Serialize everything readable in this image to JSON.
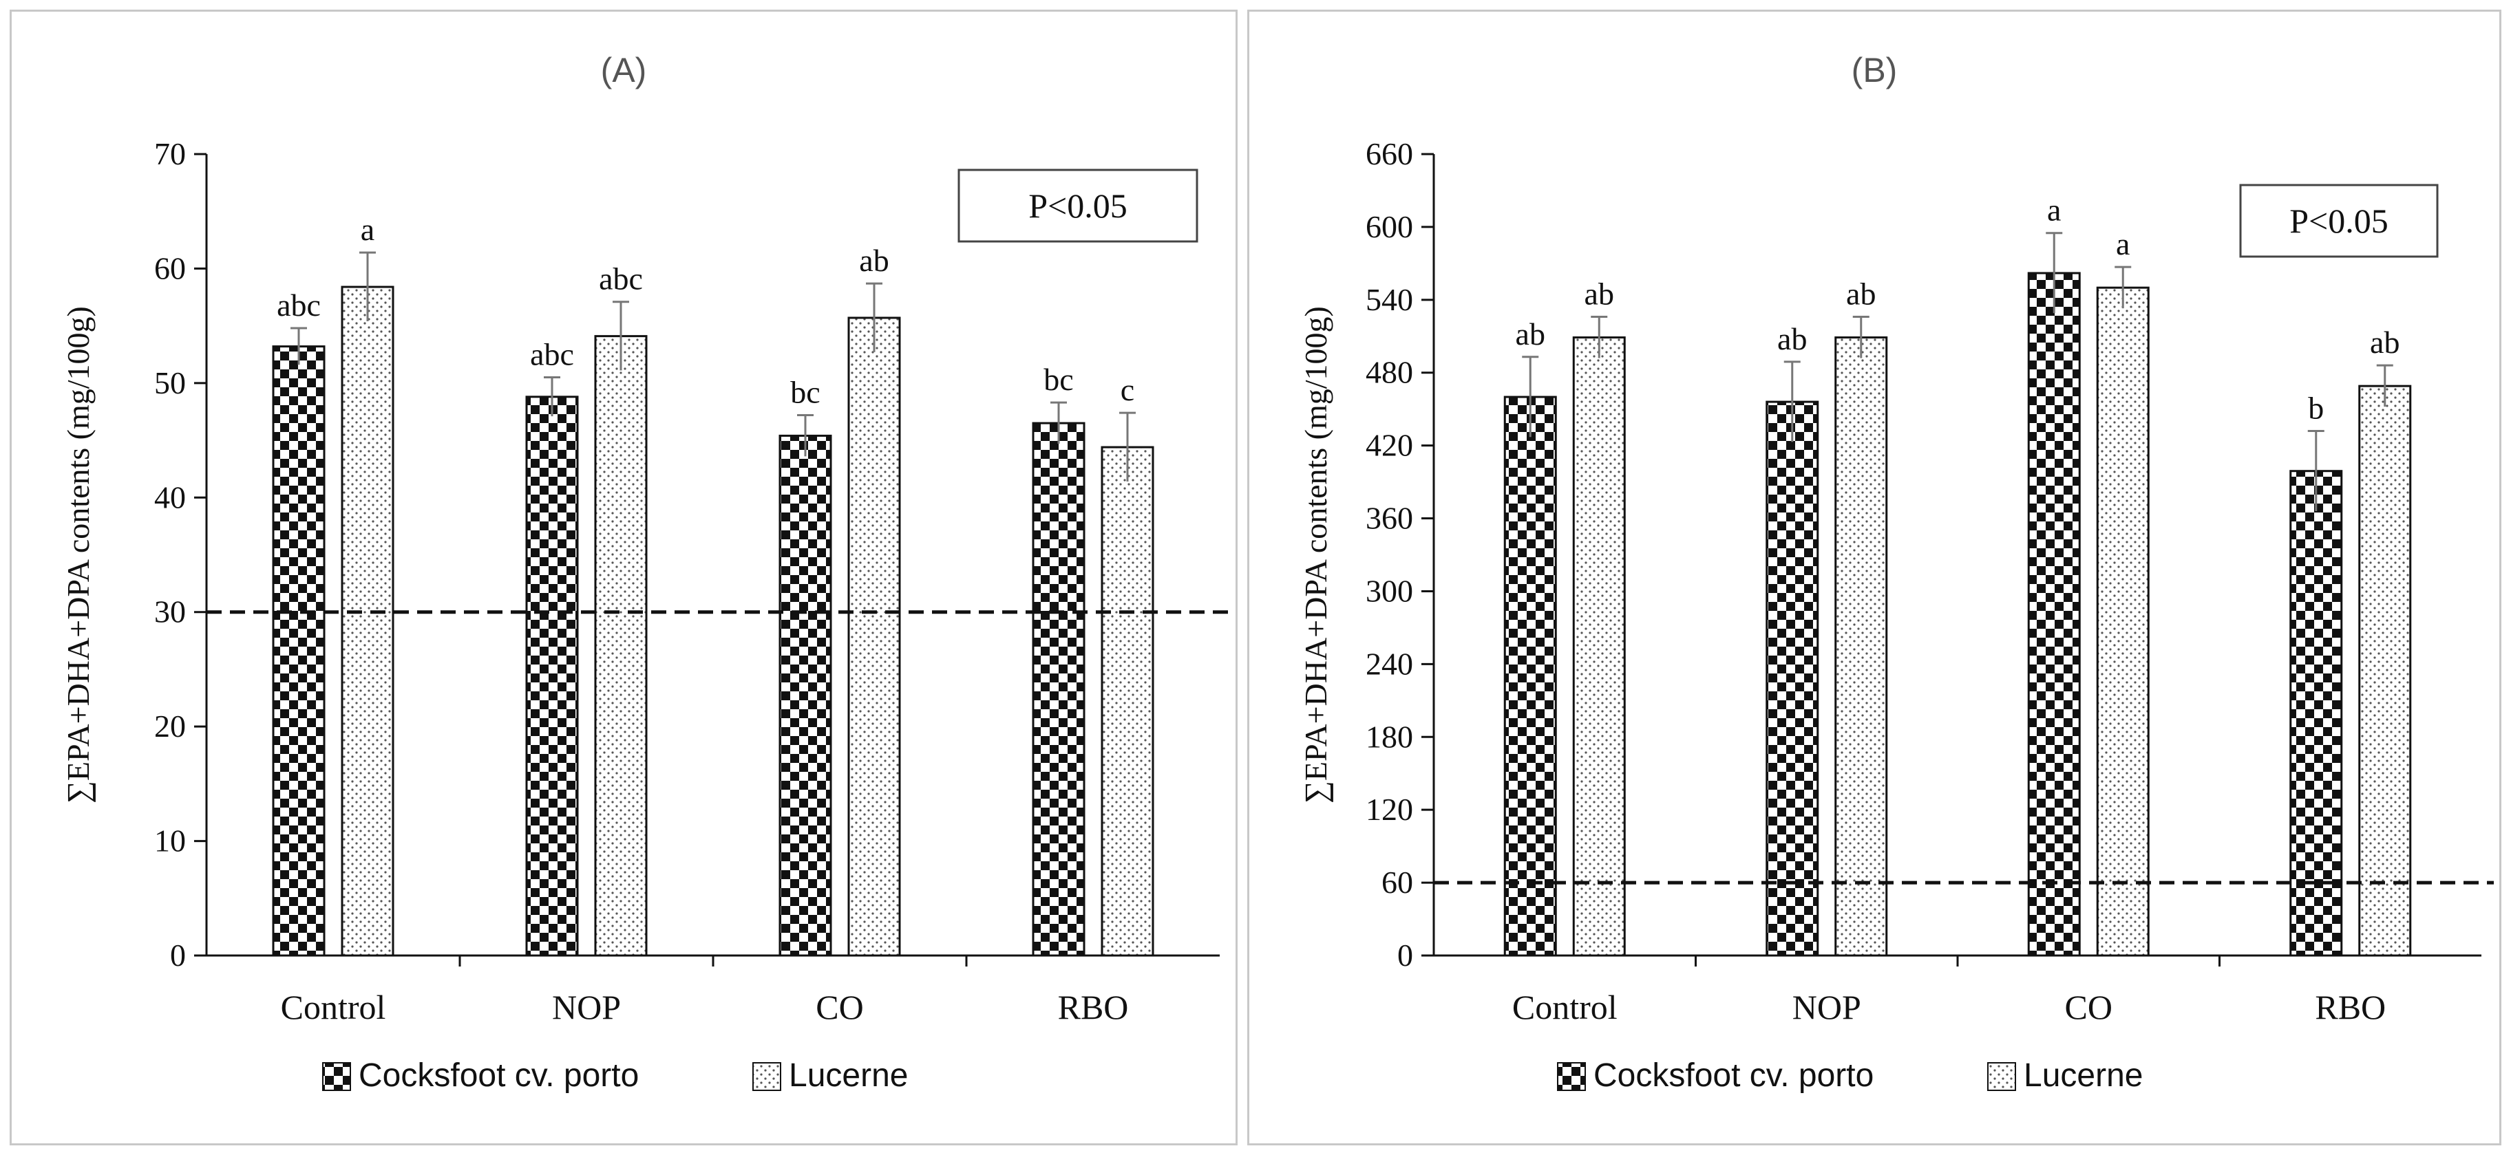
{
  "chart_data": [
    {
      "id": "A",
      "type": "bar",
      "title": "(A)",
      "ylabel": "∑EPA+DHA+DPA contents (mg/100g)",
      "xlabel": "",
      "ylim": [
        0,
        70
      ],
      "yticks": [
        0,
        10,
        20,
        30,
        40,
        50,
        60,
        70
      ],
      "categories": [
        "Control",
        "NOP",
        "CO",
        "RBO"
      ],
      "series": [
        {
          "name": "Cocksfoot cv. porto",
          "pattern": "checker",
          "values": [
            53.2,
            48.8,
            45.4,
            46.5
          ],
          "errors": [
            1.6,
            1.7,
            1.8,
            1.8
          ],
          "labels": [
            "abc",
            "abc",
            "bc",
            "bc"
          ]
        },
        {
          "name": "Lucerne",
          "pattern": "dots",
          "values": [
            58.4,
            54.1,
            55.7,
            44.4
          ],
          "errors": [
            3.0,
            3.0,
            3.0,
            3.0
          ],
          "labels": [
            "a",
            "abc",
            "ab",
            "c"
          ]
        }
      ],
      "reference_line": 30,
      "annotation": "P<0.05",
      "legend_position": "bottom"
    },
    {
      "id": "B",
      "type": "bar",
      "title": "(B)",
      "ylabel": "∑EPA+DHA+DPA contents (mg/100g)",
      "xlabel": "",
      "ylim": [
        0,
        660
      ],
      "yticks": [
        0,
        60,
        120,
        180,
        240,
        300,
        360,
        420,
        480,
        540,
        600,
        660
      ],
      "categories": [
        "Control",
        "NOP",
        "CO",
        "RBO"
      ],
      "series": [
        {
          "name": "Cocksfoot cv. porto",
          "pattern": "checker",
          "values": [
            460,
            456,
            562,
            399
          ],
          "errors": [
            33,
            33,
            33,
            33
          ],
          "labels": [
            "ab",
            "ab",
            "a",
            "b"
          ]
        },
        {
          "name": "Lucerne",
          "pattern": "dots",
          "values": [
            509,
            509,
            550,
            469
          ],
          "errors": [
            17,
            17,
            17,
            17
          ],
          "labels": [
            "ab",
            "ab",
            "a",
            "ab"
          ]
        }
      ],
      "reference_line": 60,
      "annotation": "P<0.05",
      "legend_position": "bottom"
    }
  ]
}
